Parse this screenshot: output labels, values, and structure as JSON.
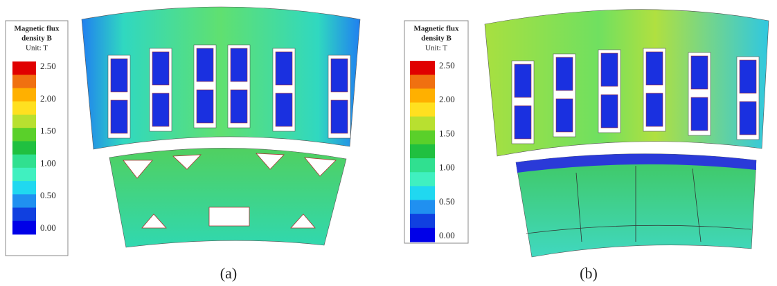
{
  "panels": [
    {
      "legend": {
        "title_lines": [
          "Magnetic flux",
          "density B"
        ],
        "unit": "Unit: T",
        "ticks": [
          "2.50",
          "2.00",
          "1.50",
          "1.00",
          "0.50",
          "0.00"
        ]
      },
      "caption": "(a)"
    },
    {
      "legend": {
        "title_lines": [
          "Magnetic flux",
          "density B"
        ],
        "unit": "Unit: T",
        "ticks": [
          "2.50",
          "2.00",
          "1.50",
          "1.00",
          "0.50",
          "0.00"
        ]
      },
      "caption": "(b)"
    }
  ]
}
